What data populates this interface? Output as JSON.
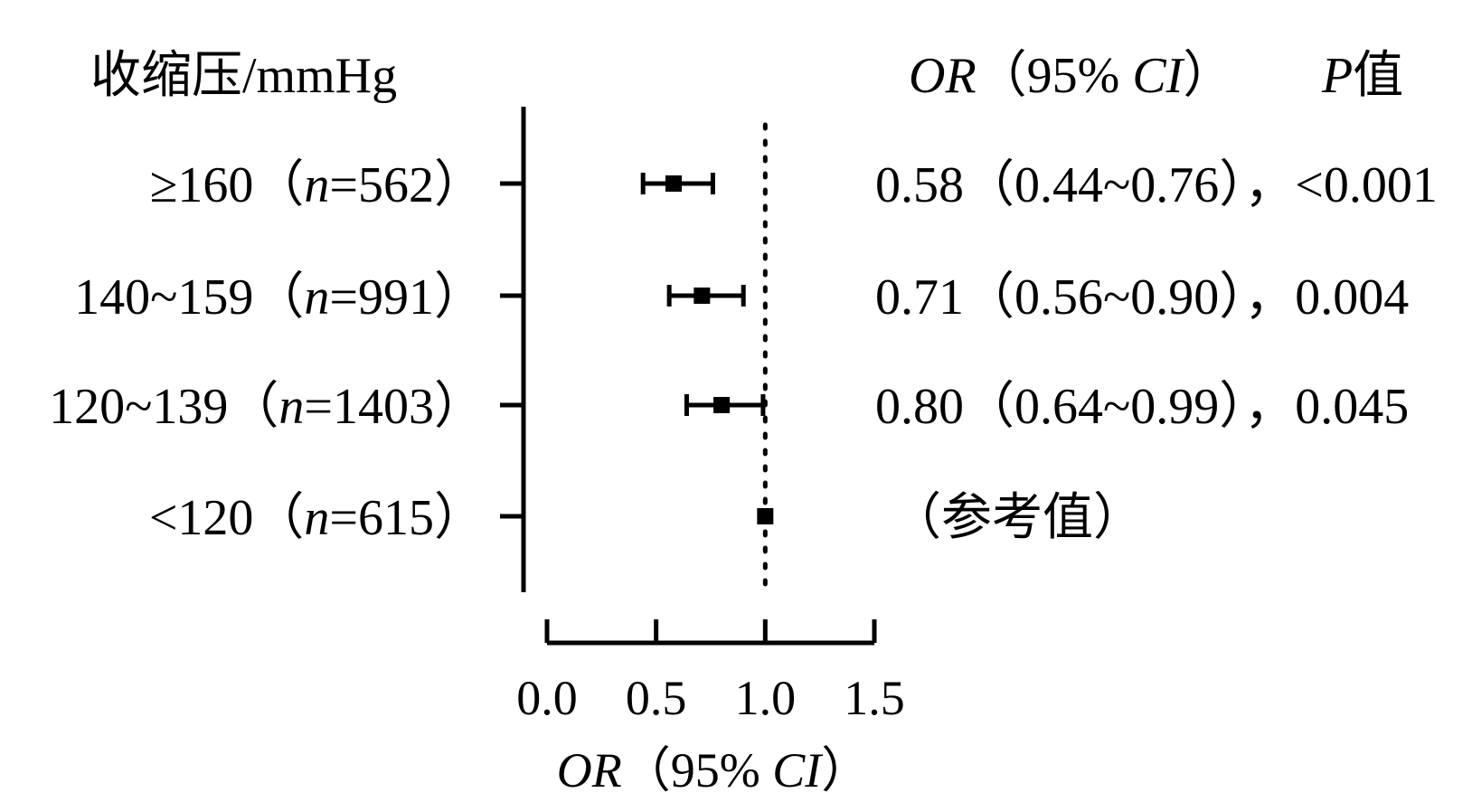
{
  "chart_data": {
    "type": "forest",
    "row_header": "收缩压/mmHg",
    "or_header": {
      "italic": "OR",
      "paren_open": "（95% ",
      "ci_italic": "CI",
      "paren_close": "）"
    },
    "p_header": {
      "italic": "P",
      "rest": "值"
    },
    "x_axis": {
      "min": 0,
      "max": 1.5,
      "ticks": [
        0.0,
        0.5,
        1.0,
        1.5
      ],
      "tick_labels": [
        "0.0",
        "0.5",
        "1.0",
        "1.5"
      ],
      "label": {
        "italic": "OR",
        "paren_open": "（95% ",
        "ci_italic": "CI",
        "paren_close": "）"
      }
    },
    "reference_line": 1.0,
    "rows": [
      {
        "group": "≥160",
        "n_prefix": "（",
        "n_italic": "n",
        "n_suffix": "=562）",
        "or": 0.58,
        "lower": 0.44,
        "upper": 0.76,
        "result_text": "0.58（0.44~0.76），<0.001"
      },
      {
        "group": "140~159",
        "n_prefix": "（",
        "n_italic": "n",
        "n_suffix": "=991）",
        "or": 0.71,
        "lower": 0.56,
        "upper": 0.9,
        "result_text": "0.71（0.56~0.90），0.004"
      },
      {
        "group": "120~139",
        "n_prefix": "（",
        "n_italic": "n",
        "n_suffix": "=1403）",
        "or": 0.8,
        "lower": 0.64,
        "upper": 0.99,
        "result_text": "0.80（0.64~0.99），0.045"
      },
      {
        "group": "<120",
        "n_prefix": "（",
        "n_italic": "n",
        "n_suffix": "=615）",
        "or": 1.0,
        "lower": null,
        "upper": null,
        "result_text": "（参考值）"
      }
    ]
  }
}
